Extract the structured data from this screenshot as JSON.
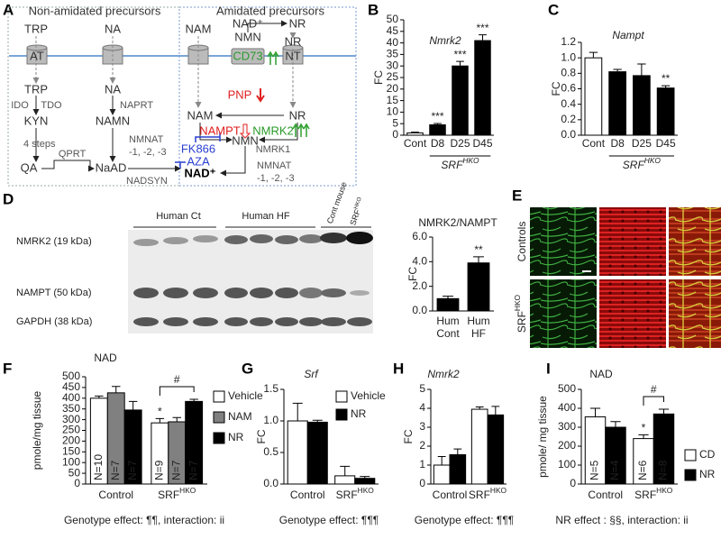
{
  "panel_labels": [
    "A",
    "B",
    "C",
    "D",
    "E",
    "F",
    "G",
    "H",
    "I"
  ],
  "diagram": {
    "labels": [
      "Non-amidated precursors",
      "Amidated precursors",
      "TRP",
      "NA",
      "NAM",
      "NAD⁺",
      "NMN",
      "NR",
      "NR",
      "AT",
      "CD73",
      "NT",
      "TRP",
      "NA",
      "IDO",
      "TDO",
      "NAPRT",
      "KYN",
      "NAMN",
      "4 steps",
      "NMNAT",
      "-1, -2, -3",
      "QA",
      "QPRT",
      "NaAD",
      "NADSYN",
      "NAD⁺",
      "PNP",
      "NAM",
      "NR",
      "NAMPT",
      "NMRK2",
      "NMN",
      "NMRK1",
      "FK866",
      "AZA",
      "NMNAT",
      "-1, -2, -3"
    ]
  },
  "blot": {
    "groups": [
      "Human Ct",
      "Human HF",
      "Cont mouse"
    ],
    "srf": {
      "text": "SRF",
      "sup": "HKO"
    },
    "rows": [
      "NMRK2 (19 kDa)",
      "NAMPT (50 kDa)",
      "GAPDH (38 kDa)"
    ]
  },
  "images": {
    "rows": [
      "Controls",
      {
        "text": "SRF",
        "sup": "HKO"
      }
    ]
  },
  "chart_data": [
    {
      "type": "bar",
      "title": "Nmrk2",
      "title_style": "italic",
      "ylabel": "FC",
      "categories": [
        "Cont",
        "D8",
        "D25",
        "D45"
      ],
      "group_label": {
        "text": "SRF",
        "sup": "HKO"
      },
      "values": [
        1,
        4.5,
        30,
        41
      ],
      "errors": [
        0.3,
        0.6,
        2,
        2.5
      ],
      "colors": [
        "#ffffff",
        "#000000",
        "#000000",
        "#000000"
      ],
      "ylim": [
        0,
        50
      ],
      "yticks": [
        0,
        5,
        10,
        15,
        20,
        25,
        30,
        35,
        40,
        45,
        50
      ],
      "annotations": [
        {
          "bar": 1,
          "text": "***"
        },
        {
          "bar": 2,
          "text": "***"
        },
        {
          "bar": 3,
          "text": "***"
        }
      ]
    },
    {
      "type": "bar",
      "title": "Nampt",
      "title_style": "italic",
      "ylabel": "FC",
      "categories": [
        "Cont",
        "D8",
        "D25",
        "D45"
      ],
      "group_label": {
        "text": "SRF",
        "sup": "HKO"
      },
      "values": [
        1.0,
        0.82,
        0.77,
        0.61
      ],
      "errors": [
        0.07,
        0.03,
        0.15,
        0.03
      ],
      "colors": [
        "#ffffff",
        "#000000",
        "#000000",
        "#000000"
      ],
      "ylim": [
        0,
        1.2
      ],
      "yticks": [
        {
          "value": 0,
          "label": "0.0"
        },
        0.2,
        0.4,
        0.6,
        0.8,
        {
          "value": 1,
          "label": "1.0"
        },
        1.2
      ],
      "annotations": [
        {
          "bar": 3,
          "text": "**"
        }
      ]
    },
    {
      "type": "bar",
      "title": "NMRK2/NAMPT",
      "ylabel": "FC",
      "categories": [
        [
          "Hum",
          "Cont"
        ],
        [
          "Hum",
          "HF"
        ]
      ],
      "values": [
        1.0,
        3.9
      ],
      "errors": [
        0.2,
        0.5
      ],
      "colors": [
        "#000000",
        "#000000"
      ],
      "ylim": [
        0,
        6
      ],
      "yticks": [
        {
          "value": 0,
          "label": "0.0"
        },
        {
          "value": 2,
          "label": "2.0"
        },
        {
          "value": 4,
          "label": "4.0"
        },
        {
          "value": 6,
          "label": "6.0"
        }
      ],
      "annotations": [
        {
          "bar": 1,
          "text": "**"
        }
      ]
    },
    {
      "type": "bar",
      "title": "NAD",
      "ylabel": "pmole/mg tissue",
      "categories": [
        "Control",
        {
          "text": "SRF",
          "sup": "HKO"
        }
      ],
      "legend": true,
      "series": [
        {
          "name": "Vehicle",
          "color": "#ffffff",
          "values": [
            400,
            285
          ],
          "errors": [
            10,
            20
          ],
          "n_labels": [
            "N=10",
            "N=9"
          ]
        },
        {
          "name": "NAM",
          "color": "#808080",
          "values": [
            425,
            290
          ],
          "errors": [
            30,
            20
          ],
          "n_labels": [
            "N=7",
            "N=7"
          ]
        },
        {
          "name": "NR",
          "color": "#000000",
          "values": [
            345,
            385
          ],
          "errors": [
            40,
            10
          ],
          "n_labels": [
            "N=7",
            "N=7"
          ]
        }
      ],
      "ylim": [
        0,
        500
      ],
      "yticks": [
        0,
        50,
        100,
        150,
        200,
        250,
        300,
        350,
        400,
        450,
        500
      ],
      "annotations": [
        {
          "series": 0,
          "bar": 1,
          "text": "*"
        }
      ],
      "brackets": [
        {
          "from": [
            0,
            1
          ],
          "to": [
            2,
            1
          ],
          "text": "#"
        }
      ],
      "note": "Genotype effect: ¶¶, interaction: ii"
    },
    {
      "type": "bar",
      "title": "Srf",
      "title_style": "italic",
      "ylabel": "FC",
      "categories": [
        "Control",
        {
          "text": "SRF",
          "sup": "HKO"
        }
      ],
      "legend": true,
      "series": [
        {
          "name": "Vehicle",
          "color": "#ffffff",
          "values": [
            1.0,
            0.13
          ],
          "errors": [
            0.28,
            0.15
          ]
        },
        {
          "name": "NR",
          "color": "#000000",
          "values": [
            0.98,
            0.09
          ],
          "errors": [
            0.03,
            0.03
          ]
        }
      ],
      "ylim": [
        0,
        1.5
      ],
      "yticks": [
        {
          "value": 0,
          "label": "0.0"
        },
        0.5,
        {
          "value": 1,
          "label": "1.0"
        },
        1.5
      ],
      "note": "Genotype effect: ¶¶¶"
    },
    {
      "type": "bar",
      "title": "Nmrk2",
      "title_style": "italic",
      "ylabel": "FC",
      "categories": [
        "Control",
        {
          "text": "SRF",
          "sup": "HKO"
        }
      ],
      "legend": false,
      "series": [
        {
          "color": "#ffffff",
          "values": [
            1.0,
            3.95
          ],
          "errors": [
            0.45,
            0.12
          ]
        },
        {
          "color": "#000000",
          "values": [
            1.55,
            3.65
          ],
          "errors": [
            0.3,
            0.45
          ]
        }
      ],
      "ylim": [
        0,
        5
      ],
      "yticks": [
        0,
        1,
        2,
        3,
        4,
        5
      ],
      "note": "Genotype effect: ¶¶¶"
    },
    {
      "type": "bar",
      "title": "NAD",
      "ylabel": "pmole/ mg tissue",
      "categories": [
        "Control",
        {
          "text": "SRF",
          "sup": "HKO"
        }
      ],
      "legend": true,
      "series": [
        {
          "name": "CD",
          "color": "#ffffff",
          "values": [
            355,
            240
          ],
          "errors": [
            45,
            20
          ],
          "n_labels": [
            "N=5",
            "N=6"
          ]
        },
        {
          "name": "NR",
          "color": "#000000",
          "values": [
            300,
            370
          ],
          "errors": [
            30,
            25
          ],
          "n_labels": [
            "N=4",
            "N=8"
          ]
        }
      ],
      "ylim": [
        0,
        500
      ],
      "yticks": [
        0,
        100,
        200,
        300,
        400,
        500
      ],
      "annotations": [
        {
          "series": 0,
          "bar": 1,
          "text": "*"
        }
      ],
      "brackets": [
        {
          "from": [
            0,
            1
          ],
          "to": [
            1,
            1
          ],
          "text": "#"
        }
      ],
      "note": "NR effect : §§, interaction: ii"
    }
  ]
}
